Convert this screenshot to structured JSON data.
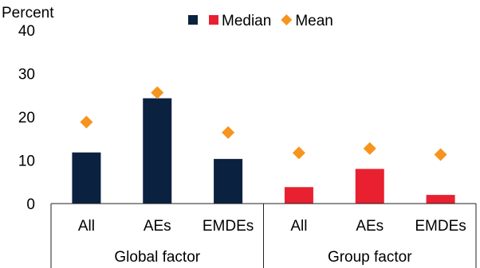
{
  "chart_data": {
    "type": "bar",
    "y_unit_label": "Percent",
    "ylim": [
      0,
      40
    ],
    "yticks": [
      0,
      10,
      20,
      30,
      40
    ],
    "grid": false,
    "legend_position": "top",
    "legend": [
      {
        "name": "",
        "marker": "square",
        "color": "#0b2140"
      },
      {
        "name": "Median",
        "marker": "square",
        "color": "#e8202f"
      },
      {
        "name": "Mean",
        "marker": "diamond",
        "color": "#f7941d"
      }
    ],
    "groups": [
      {
        "label": "Global factor",
        "bar_color": "#0b2140",
        "categories": [
          "All",
          "AEs",
          "EMDEs"
        ],
        "median": [
          11.8,
          24.3,
          10.3
        ],
        "mean": [
          18.8,
          25.6,
          16.4
        ]
      },
      {
        "label": "Group factor",
        "bar_color": "#e8202f",
        "categories": [
          "All",
          "AEs",
          "EMDEs"
        ],
        "median": [
          3.8,
          8.0,
          2.0
        ],
        "mean": [
          11.7,
          12.7,
          11.3
        ]
      }
    ]
  }
}
